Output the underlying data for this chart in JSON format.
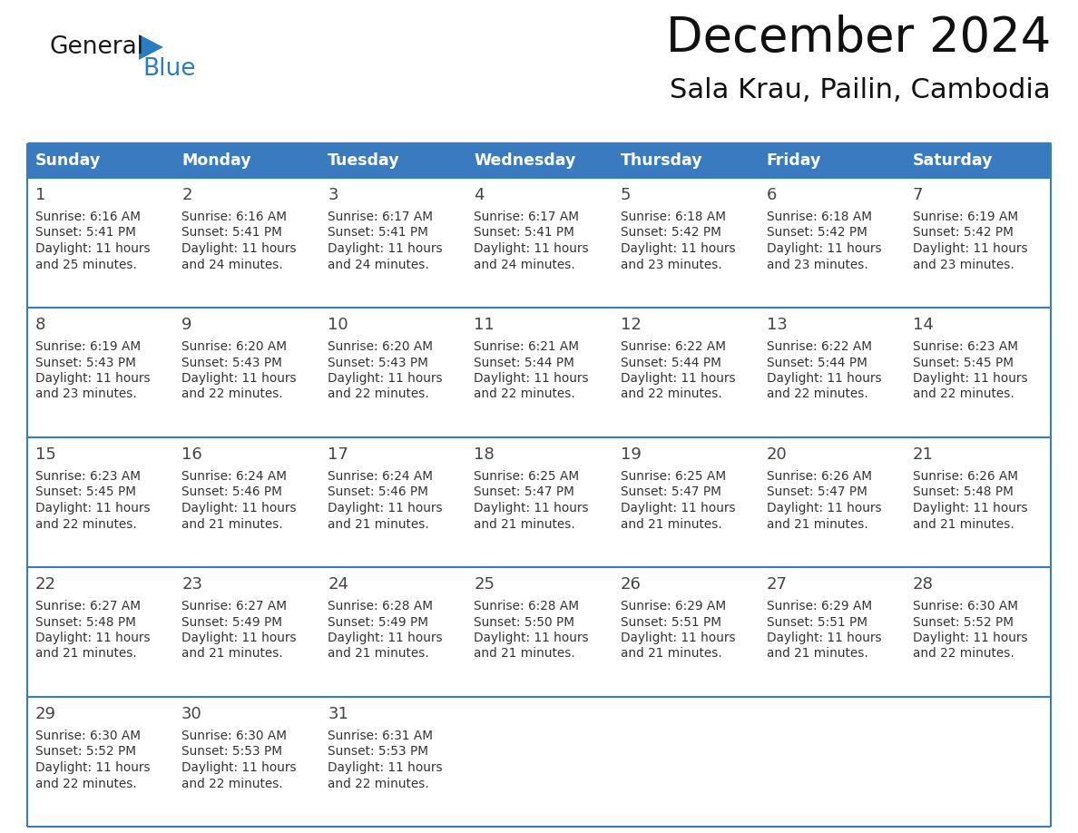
{
  "title": "December 2024",
  "subtitle": "Sala Krau, Pailin, Cambodia",
  "header_color": "#3a7bbf",
  "header_text_color": "#ffffff",
  "cell_bg_color": "#ffffff",
  "row_sep_color": "#3a7bbf",
  "border_color": "#3a7bbf",
  "days_of_week": [
    "Sunday",
    "Monday",
    "Tuesday",
    "Wednesday",
    "Thursday",
    "Friday",
    "Saturday"
  ],
  "weeks": [
    [
      {
        "day": 1,
        "sunrise": "6:16 AM",
        "sunset": "5:41 PM",
        "daylight_hours": 11,
        "daylight_minutes": 25
      },
      {
        "day": 2,
        "sunrise": "6:16 AM",
        "sunset": "5:41 PM",
        "daylight_hours": 11,
        "daylight_minutes": 24
      },
      {
        "day": 3,
        "sunrise": "6:17 AM",
        "sunset": "5:41 PM",
        "daylight_hours": 11,
        "daylight_minutes": 24
      },
      {
        "day": 4,
        "sunrise": "6:17 AM",
        "sunset": "5:41 PM",
        "daylight_hours": 11,
        "daylight_minutes": 24
      },
      {
        "day": 5,
        "sunrise": "6:18 AM",
        "sunset": "5:42 PM",
        "daylight_hours": 11,
        "daylight_minutes": 23
      },
      {
        "day": 6,
        "sunrise": "6:18 AM",
        "sunset": "5:42 PM",
        "daylight_hours": 11,
        "daylight_minutes": 23
      },
      {
        "day": 7,
        "sunrise": "6:19 AM",
        "sunset": "5:42 PM",
        "daylight_hours": 11,
        "daylight_minutes": 23
      }
    ],
    [
      {
        "day": 8,
        "sunrise": "6:19 AM",
        "sunset": "5:43 PM",
        "daylight_hours": 11,
        "daylight_minutes": 23
      },
      {
        "day": 9,
        "sunrise": "6:20 AM",
        "sunset": "5:43 PM",
        "daylight_hours": 11,
        "daylight_minutes": 22
      },
      {
        "day": 10,
        "sunrise": "6:20 AM",
        "sunset": "5:43 PM",
        "daylight_hours": 11,
        "daylight_minutes": 22
      },
      {
        "day": 11,
        "sunrise": "6:21 AM",
        "sunset": "5:44 PM",
        "daylight_hours": 11,
        "daylight_minutes": 22
      },
      {
        "day": 12,
        "sunrise": "6:22 AM",
        "sunset": "5:44 PM",
        "daylight_hours": 11,
        "daylight_minutes": 22
      },
      {
        "day": 13,
        "sunrise": "6:22 AM",
        "sunset": "5:44 PM",
        "daylight_hours": 11,
        "daylight_minutes": 22
      },
      {
        "day": 14,
        "sunrise": "6:23 AM",
        "sunset": "5:45 PM",
        "daylight_hours": 11,
        "daylight_minutes": 22
      }
    ],
    [
      {
        "day": 15,
        "sunrise": "6:23 AM",
        "sunset": "5:45 PM",
        "daylight_hours": 11,
        "daylight_minutes": 22
      },
      {
        "day": 16,
        "sunrise": "6:24 AM",
        "sunset": "5:46 PM",
        "daylight_hours": 11,
        "daylight_minutes": 21
      },
      {
        "day": 17,
        "sunrise": "6:24 AM",
        "sunset": "5:46 PM",
        "daylight_hours": 11,
        "daylight_minutes": 21
      },
      {
        "day": 18,
        "sunrise": "6:25 AM",
        "sunset": "5:47 PM",
        "daylight_hours": 11,
        "daylight_minutes": 21
      },
      {
        "day": 19,
        "sunrise": "6:25 AM",
        "sunset": "5:47 PM",
        "daylight_hours": 11,
        "daylight_minutes": 21
      },
      {
        "day": 20,
        "sunrise": "6:26 AM",
        "sunset": "5:47 PM",
        "daylight_hours": 11,
        "daylight_minutes": 21
      },
      {
        "day": 21,
        "sunrise": "6:26 AM",
        "sunset": "5:48 PM",
        "daylight_hours": 11,
        "daylight_minutes": 21
      }
    ],
    [
      {
        "day": 22,
        "sunrise": "6:27 AM",
        "sunset": "5:48 PM",
        "daylight_hours": 11,
        "daylight_minutes": 21
      },
      {
        "day": 23,
        "sunrise": "6:27 AM",
        "sunset": "5:49 PM",
        "daylight_hours": 11,
        "daylight_minutes": 21
      },
      {
        "day": 24,
        "sunrise": "6:28 AM",
        "sunset": "5:49 PM",
        "daylight_hours": 11,
        "daylight_minutes": 21
      },
      {
        "day": 25,
        "sunrise": "6:28 AM",
        "sunset": "5:50 PM",
        "daylight_hours": 11,
        "daylight_minutes": 21
      },
      {
        "day": 26,
        "sunrise": "6:29 AM",
        "sunset": "5:51 PM",
        "daylight_hours": 11,
        "daylight_minutes": 21
      },
      {
        "day": 27,
        "sunrise": "6:29 AM",
        "sunset": "5:51 PM",
        "daylight_hours": 11,
        "daylight_minutes": 21
      },
      {
        "day": 28,
        "sunrise": "6:30 AM",
        "sunset": "5:52 PM",
        "daylight_hours": 11,
        "daylight_minutes": 22
      }
    ],
    [
      {
        "day": 29,
        "sunrise": "6:30 AM",
        "sunset": "5:52 PM",
        "daylight_hours": 11,
        "daylight_minutes": 22
      },
      {
        "day": 30,
        "sunrise": "6:30 AM",
        "sunset": "5:53 PM",
        "daylight_hours": 11,
        "daylight_minutes": 22
      },
      {
        "day": 31,
        "sunrise": "6:31 AM",
        "sunset": "5:53 PM",
        "daylight_hours": 11,
        "daylight_minutes": 22
      },
      null,
      null,
      null,
      null
    ]
  ],
  "logo_color_general": "#1a1a1a",
  "logo_color_blue": "#2a7dc0",
  "logo_triangle_color": "#2a7dc0"
}
